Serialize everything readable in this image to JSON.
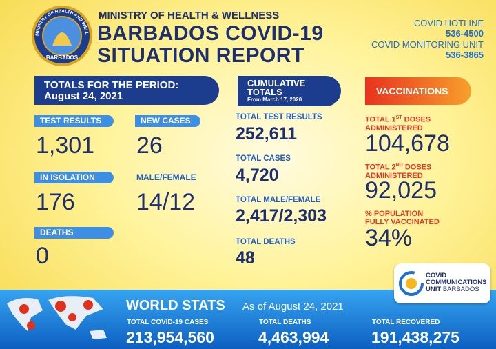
{
  "header": {
    "logo_arc": "MINISTRY OF HEALTH AND WELLNESS",
    "logo_bottom": "BARBADOS",
    "ministry": "MINISTRY OF HEALTH & WELLNESS",
    "title_line1": "BARBADOS COVID-19",
    "title_line2": "SITUATION REPORT",
    "hotline_label": "COVID HOTLINE",
    "hotline_number": "536-4500",
    "monitoring_label": "COVID MONITORING UNIT",
    "monitoring_number": "536-3865"
  },
  "period": {
    "heading": "TOTALS FOR THE PERIOD:",
    "date": "August 24, 2021",
    "items": [
      {
        "label": "TEST RESULTS",
        "value": "1,301"
      },
      {
        "label": "NEW CASES",
        "value": "26"
      },
      {
        "label": "IN ISOLATION",
        "value": "176"
      },
      {
        "label": "MALE/FEMALE",
        "value": "14/12"
      },
      {
        "label": "DEATHS",
        "value": "0"
      }
    ]
  },
  "cumulative": {
    "heading_line1": "CUMULATIVE",
    "heading_line2": "TOTALS",
    "since": "From March 17, 2020",
    "items": [
      {
        "label": "TOTAL TEST RESULTS",
        "value": "252,611"
      },
      {
        "label": "TOTAL CASES",
        "value": "4,720"
      },
      {
        "label": "TOTAL MALE/FEMALE",
        "value": "2,417/2,303"
      },
      {
        "label": "TOTAL DEATHS",
        "value": "48"
      }
    ]
  },
  "vaccinations": {
    "heading": "VACCINATIONS",
    "items": [
      {
        "label_pre": "TOTAL 1",
        "label_sup": "ST",
        "label_post": "DOSES",
        "label_line2": "ADMINISTERED",
        "value": "104,678"
      },
      {
        "label_pre": "TOTAL 2",
        "label_sup": "ND",
        "label_post": "DOSES",
        "label_line2": "ADMINISTERED",
        "value": "92,025"
      },
      {
        "label_pre": "% POPULATION",
        "label_line2": "FULLY VACCINATED",
        "value": "34%"
      }
    ]
  },
  "badge": {
    "line1": "COVID",
    "line2": "COMMUNICATIONS",
    "line3a": "UNIT",
    "line3b": "BARBADOS"
  },
  "world": {
    "heading": "WORLD STATS",
    "date": "As of August 24, 2021",
    "items": [
      {
        "label": "TOTAL COVID-19 CASES",
        "value": "213,954,560"
      },
      {
        "label": "TOTAL DEATHS",
        "value": "4,463,994"
      },
      {
        "label": "TOTAL RECOVERED",
        "value": "191,438,275"
      }
    ]
  }
}
